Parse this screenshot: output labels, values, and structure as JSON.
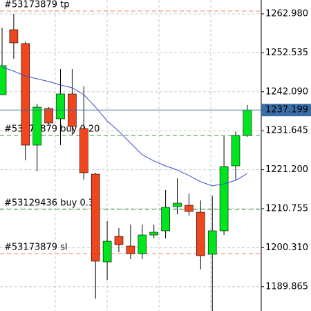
{
  "chart_data": {
    "type": "candlestick",
    "ylim": [
      1183.35,
      1266.68
    ],
    "yticks": [
      {
        "value": 1262.98,
        "label": "1262.980"
      },
      {
        "value": 1252.535,
        "label": "1252.535"
      },
      {
        "value": 1242.09,
        "label": "1242.090"
      },
      {
        "value": 1231.645,
        "label": "1231.645"
      },
      {
        "value": 1221.2,
        "label": "1221.200"
      },
      {
        "value": 1210.755,
        "label": "1210.755"
      },
      {
        "value": 1200.31,
        "label": "1200.310"
      },
      {
        "value": 1189.865,
        "label": "1189.865"
      }
    ],
    "up_color": "#00e61e",
    "down_color": "#f0461e",
    "open": [
      1241.31,
      1258.72,
      1255.02,
      1227.79,
      1237.61,
      1234.83,
      1241.5,
      1232.24,
      1220.02,
      1196.5,
      1203.35,
      1200.76,
      1198.72,
      1203.72,
      1204.83,
      1211.31,
      1211.68,
      1209.83,
      1198.54,
      1204.83,
      1222.24,
      1230.39
    ],
    "high": [
      1259.28,
      1262.98,
      1255.57,
      1238.91,
      1237.98,
      1248.17,
      1248.17,
      1243.54,
      1220.39,
      1207.43,
      1205.57,
      1206.5,
      1206.5,
      1206.5,
      1215.76,
      1218.91,
      1214.83,
      1212.98,
      1214.28,
      1230.2,
      1231.5,
      1238.54
    ],
    "low": [
      1241.31,
      1250.94,
      1223.72,
      1220.76,
      1233.35,
      1227.79,
      1230.57,
      1218.54,
      1186.69,
      1191.69,
      1199.09,
      1197.24,
      1197.24,
      1202.79,
      1202.79,
      1209.28,
      1208.91,
      1194.46,
      1183.35,
      1203.72,
      1218.54,
      1230.02
    ],
    "close": [
      1249.09,
      1255.2,
      1227.79,
      1237.98,
      1233.72,
      1241.5,
      1232.8,
      1220.39,
      1196.69,
      1202.05,
      1201.13,
      1198.72,
      1203.72,
      1204.46,
      1211.13,
      1212.24,
      1210.02,
      1198.17,
      1204.83,
      1222.05,
      1230.39,
      1237.2
    ],
    "ma": {
      "color": "#3a50c8",
      "values": [
        1248.72,
        1247.61,
        1246.31,
        1245.57,
        1244.83,
        1243.91,
        1243.17,
        1241.31,
        1237.98,
        1234.28,
        1231.5,
        1228.35,
        1225.2,
        1223.54,
        1222.24,
        1221.13,
        1219.65,
        1217.98,
        1216.87,
        1217.43,
        1218.35,
        1220.2
      ]
    },
    "current_price": 1237.199,
    "current_price_color": "#3a6ea5",
    "orders": [
      {
        "label": "#53173879 tp",
        "price": 1263.72,
        "color": "#f08060"
      },
      {
        "label": "#53173879 buy 0.20",
        "price": 1230.39,
        "color": "#30a030"
      },
      {
        "label": "#53129436 buy 0.30",
        "price": 1210.57,
        "color": "#30a030"
      },
      {
        "label": "#53173879 sl",
        "price": 1198.72,
        "color": "#f08060"
      }
    ]
  }
}
